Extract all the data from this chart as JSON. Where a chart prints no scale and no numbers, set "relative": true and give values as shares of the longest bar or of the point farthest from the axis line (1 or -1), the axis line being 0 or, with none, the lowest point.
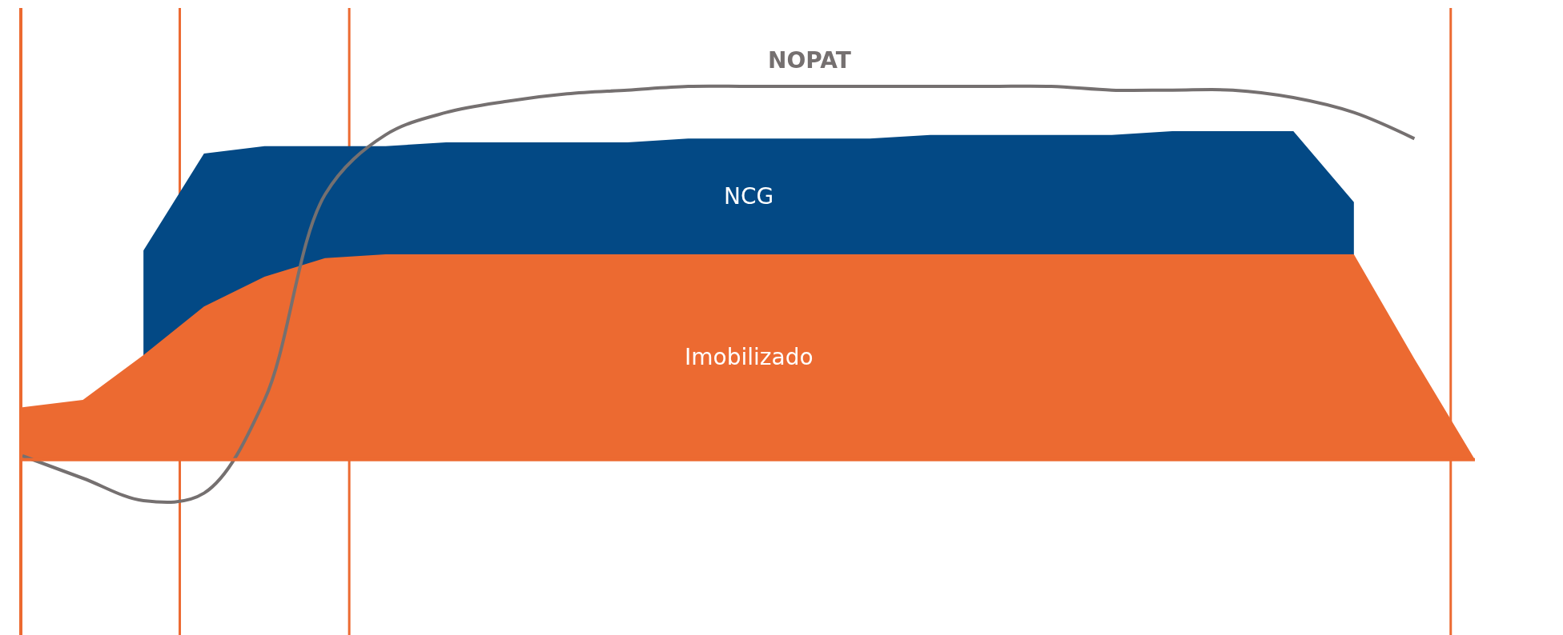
{
  "chart_data": {
    "type": "area",
    "relative": true,
    "legend": false,
    "grid": false,
    "categories": [
      null,
      null,
      null,
      null,
      null,
      null,
      null,
      null,
      null,
      null,
      null,
      null,
      null,
      null,
      null,
      null,
      null,
      null,
      null,
      null,
      null,
      null,
      null,
      null,
      null
    ],
    "series": [
      {
        "name": "NCG",
        "color": "#034985",
        "values": [
          null,
          null,
          0.56,
          0.82,
          0.84,
          0.84,
          0.84,
          0.85,
          0.85,
          0.85,
          0.85,
          0.86,
          0.86,
          0.86,
          0.86,
          0.87,
          0.87,
          0.87,
          0.87,
          0.88,
          0.88,
          0.88,
          0.69,
          null,
          null
        ]
      },
      {
        "name": "Imobilizado",
        "color": "#ec6a31",
        "values": [
          0.14,
          0.16,
          0.28,
          0.41,
          0.49,
          0.54,
          0.55,
          0.55,
          0.55,
          0.55,
          0.55,
          0.55,
          0.55,
          0.55,
          0.55,
          0.55,
          0.55,
          0.55,
          0.55,
          0.55,
          0.55,
          0.55,
          0.55,
          0.27,
          0
        ]
      },
      {
        "name": "NOPAT",
        "type": "line",
        "color": "#757070",
        "values": [
          0.01,
          -0.05,
          -0.11,
          -0.09,
          0.16,
          0.71,
          0.87,
          0.93,
          0.96,
          0.98,
          0.99,
          1,
          1,
          1,
          1,
          1,
          1,
          1,
          0.99,
          0.99,
          0.99,
          0.97,
          0.93,
          0.86,
          null
        ]
      }
    ],
    "ref_lines": [
      {
        "axis": "y",
        "value": 0,
        "color": "#ec6a31"
      }
    ]
  }
}
